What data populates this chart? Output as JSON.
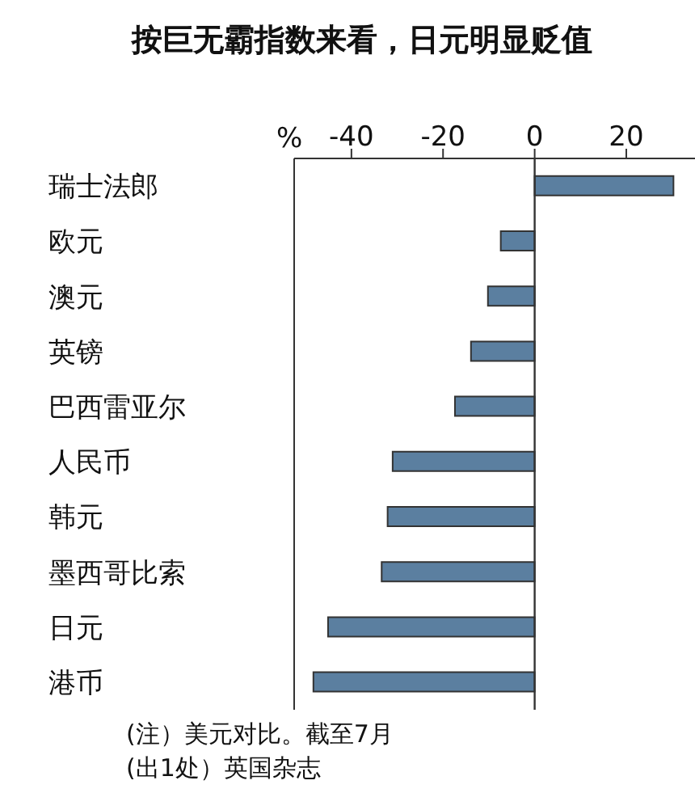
{
  "chart_data": {
    "type": "bar",
    "orientation": "horizontal",
    "title": "按巨无霸指数来看，日元明显贬值",
    "xlabel": "%",
    "categories": [
      "瑞士法郎",
      "欧元",
      "澳元",
      "英镑",
      "巴西雷亚尔",
      "人民币",
      "韩元",
      "墨西哥比索",
      "日元",
      "港币"
    ],
    "values": [
      30.3,
      -7.4,
      -10.2,
      -13.9,
      -17.4,
      -31.0,
      -32.1,
      -33.4,
      -45.1,
      -48.3
    ],
    "color": "#5b7fa0",
    "xlim": [
      -52.5,
      35
    ],
    "xticks": [
      -40,
      -20,
      0,
      20
    ],
    "grid": false,
    "ref_lines": [
      {
        "axis": "x",
        "value": 0,
        "color": "#333333"
      }
    ],
    "annotations": [
      "(注）美元对比。截至7月",
      "(出1处）英国杂志"
    ]
  }
}
